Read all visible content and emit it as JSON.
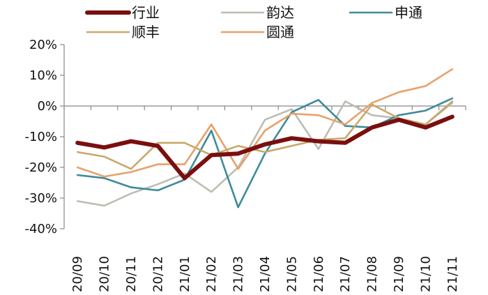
{
  "chart_data": {
    "type": "line",
    "title": "",
    "xlabel": "",
    "ylabel": "",
    "categories": [
      "20/09",
      "20/10",
      "20/11",
      "20/12",
      "21/01",
      "21/02",
      "21/03",
      "21/04",
      "21/05",
      "21/06",
      "21/07",
      "21/08",
      "21/09",
      "21/10",
      "21/11"
    ],
    "ylim": [
      -40,
      20
    ],
    "yticks": [
      -40,
      -30,
      -20,
      -10,
      0,
      10,
      20
    ],
    "ytick_labels": [
      "-40%",
      "-30%",
      "-20%",
      "-10%",
      "0%",
      "10%",
      "20%"
    ],
    "legend_position": "top",
    "series": [
      {
        "name": "行业",
        "color": "#7a0f0f",
        "width": 6,
        "values": [
          -12,
          -13.5,
          -11.5,
          -13,
          -23.5,
          -16,
          -15.5,
          -12.5,
          -10.5,
          -11.5,
          -12,
          -7,
          -4.5,
          -7,
          -3.5
        ]
      },
      {
        "name": "韵达",
        "color": "#bdbdb2",
        "width": 2.6,
        "values": [
          -31,
          -32.5,
          -28.5,
          -25.5,
          -22,
          -28,
          -20,
          -4.5,
          -1,
          -14,
          1.5,
          -3,
          -4,
          -6,
          1
        ]
      },
      {
        "name": "申通",
        "color": "#3e8a9a",
        "width": 2.6,
        "values": [
          -22.5,
          -23.5,
          -26.5,
          -27.5,
          -24,
          -8,
          -33,
          -15.5,
          -2,
          2,
          -6.5,
          -7,
          -3,
          -1.5,
          2.5
        ]
      },
      {
        "name": "顺丰",
        "color": "#c9a86a",
        "width": 2.6,
        "values": [
          -15,
          -16.5,
          -20.5,
          -12,
          -12,
          -16,
          -13,
          -15,
          -13,
          -11,
          -10.5,
          0.5,
          -4,
          -6,
          1.5
        ]
      },
      {
        "name": "圆通",
        "color": "#e8a06a",
        "width": 2.6,
        "values": [
          -20,
          -23,
          -21.5,
          -19,
          -19,
          -6,
          -20.5,
          -8,
          -2.5,
          -3,
          -6,
          1,
          4.5,
          6.5,
          12
        ]
      }
    ]
  }
}
